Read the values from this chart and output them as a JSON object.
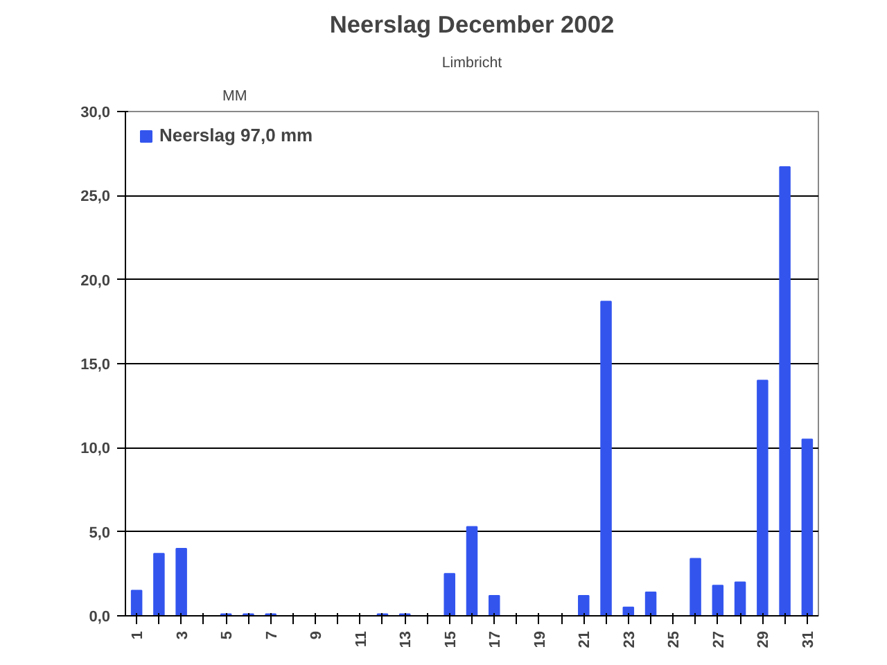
{
  "chart_data": {
    "type": "bar",
    "title": "Neerslag December 2002",
    "subtitle": "Limbricht",
    "ylabel": "MM",
    "categories": [
      "1",
      null,
      "3",
      null,
      "5",
      null,
      "7",
      null,
      "9",
      null,
      "11",
      null,
      "13",
      null,
      "15",
      null,
      "17",
      null,
      "19",
      null,
      "21",
      null,
      "23",
      null,
      "25",
      null,
      "27",
      null,
      "29",
      null,
      "31"
    ],
    "series": [
      {
        "name": "Neerslag 97,0 mm",
        "color": "#3355ee",
        "values": [
          1.5,
          3.7,
          4.0,
          0,
          0.1,
          0.1,
          0.1,
          0,
          0,
          0,
          0,
          0.1,
          0.1,
          0,
          2.5,
          5.3,
          1.2,
          0,
          0,
          0,
          1.2,
          18.7,
          0.5,
          1.4,
          0,
          3.4,
          1.8,
          2.0,
          14.0,
          26.7,
          10.5
        ]
      }
    ],
    "ylim": [
      0,
      30
    ],
    "yticks": [
      {
        "value": 0,
        "label": "0,0"
      },
      {
        "value": 5,
        "label": "5,0"
      },
      {
        "value": 10,
        "label": "10,0"
      },
      {
        "value": 15,
        "label": "15,0"
      },
      {
        "value": 20,
        "label": "20,0"
      },
      {
        "value": 25,
        "label": "25,0"
      },
      {
        "value": 30,
        "label": "30,0"
      }
    ],
    "grid": "y",
    "legend": "top left"
  }
}
